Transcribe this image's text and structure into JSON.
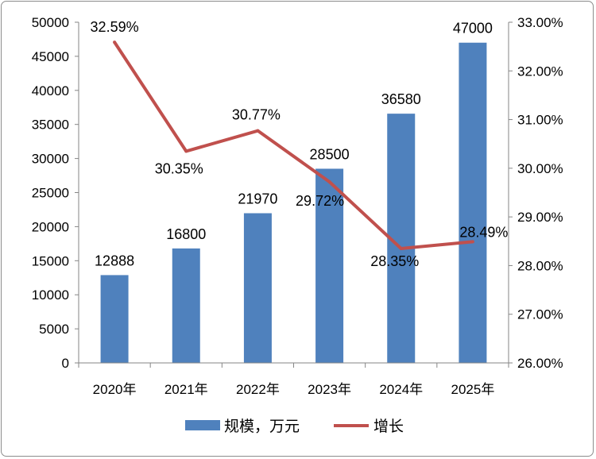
{
  "chart_data": {
    "type": "bar",
    "categories": [
      "2020年",
      "2021年",
      "2022年",
      "2023年",
      "2024年",
      "2025年"
    ],
    "series": [
      {
        "name": "规模，万元",
        "type": "bar",
        "axis": "left",
        "values": [
          12888,
          16800,
          21970,
          28500,
          36580,
          47000
        ],
        "labels": [
          "12888",
          "16800",
          "21970",
          "28500",
          "36580",
          "47000"
        ],
        "color": "#4f81bd"
      },
      {
        "name": "增长",
        "type": "line",
        "axis": "right",
        "values": [
          32.59,
          30.35,
          30.77,
          29.72,
          28.35,
          28.49
        ],
        "labels": [
          "32.59%",
          "30.35%",
          "30.77%",
          "29.72%",
          "28.35%",
          "28.49%"
        ],
        "color": "#c0504d"
      }
    ],
    "y_left": {
      "range": [
        0,
        50000
      ],
      "ticks": [
        "0",
        "5000",
        "10000",
        "15000",
        "20000",
        "25000",
        "30000",
        "35000",
        "40000",
        "45000",
        "50000"
      ]
    },
    "y_right": {
      "range": [
        26,
        33
      ],
      "ticks": [
        "26.00%",
        "27.00%",
        "28.00%",
        "29.00%",
        "30.00%",
        "31.00%",
        "32.00%",
        "33.00%"
      ]
    },
    "grid": false,
    "legend_position": "bottom"
  }
}
